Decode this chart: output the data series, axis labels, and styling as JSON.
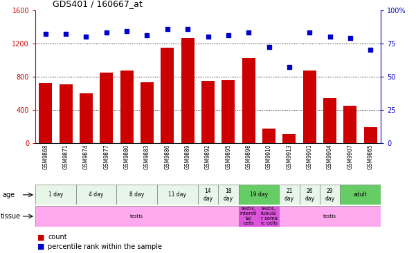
{
  "title": "GDS401 / 160667_at",
  "samples": [
    "GSM9868",
    "GSM9871",
    "GSM9874",
    "GSM9877",
    "GSM9880",
    "GSM9883",
    "GSM9886",
    "GSM9889",
    "GSM9892",
    "GSM9895",
    "GSM9898",
    "GSM9910",
    "GSM9913",
    "GSM9901",
    "GSM9904",
    "GSM9907",
    "GSM9865"
  ],
  "counts": [
    720,
    710,
    600,
    850,
    870,
    730,
    1150,
    1260,
    750,
    760,
    1020,
    170,
    110,
    870,
    540,
    450,
    190
  ],
  "percentiles": [
    82,
    82,
    80,
    83,
    84,
    81,
    86,
    86,
    80,
    81,
    83,
    72,
    57,
    83,
    80,
    79,
    70
  ],
  "ylim_left": [
    0,
    1600
  ],
  "ylim_right": [
    0,
    100
  ],
  "yticks_left": [
    0,
    400,
    800,
    1200,
    1600
  ],
  "yticks_right_vals": [
    0,
    25,
    50,
    75,
    100
  ],
  "yticks_right_labels": [
    "0",
    "25",
    "50",
    "75",
    "100%"
  ],
  "bar_color": "#cc0000",
  "dot_color": "#0000cc",
  "age_groups": [
    {
      "label": "1 day",
      "start": 0,
      "end": 2,
      "color": "#e8f5e9"
    },
    {
      "label": "4 day",
      "start": 2,
      "end": 4,
      "color": "#e8f5e9"
    },
    {
      "label": "8 day",
      "start": 4,
      "end": 6,
      "color": "#e8f5e9"
    },
    {
      "label": "11 day",
      "start": 6,
      "end": 8,
      "color": "#e8f5e9"
    },
    {
      "label": "14\nday",
      "start": 8,
      "end": 9,
      "color": "#e8f5e9"
    },
    {
      "label": "18\nday",
      "start": 9,
      "end": 10,
      "color": "#e8f5e9"
    },
    {
      "label": "19 day",
      "start": 10,
      "end": 12,
      "color": "#66cc66"
    },
    {
      "label": "21\nday",
      "start": 12,
      "end": 13,
      "color": "#e8f5e9"
    },
    {
      "label": "26\nday",
      "start": 13,
      "end": 14,
      "color": "#e8f5e9"
    },
    {
      "label": "29\nday",
      "start": 14,
      "end": 15,
      "color": "#e8f5e9"
    },
    {
      "label": "adult",
      "start": 15,
      "end": 17,
      "color": "#66cc66"
    }
  ],
  "tissue_groups": [
    {
      "label": "testis",
      "start": 0,
      "end": 10,
      "color": "#ffaaee"
    },
    {
      "label": "testis,\nintersti\ntal\ncells",
      "start": 10,
      "end": 11,
      "color": "#dd55dd"
    },
    {
      "label": "testis,\ntubula\nr soma\nic cells",
      "start": 11,
      "end": 12,
      "color": "#dd55dd"
    },
    {
      "label": "testis",
      "start": 12,
      "end": 17,
      "color": "#ffaaee"
    }
  ],
  "legend_count_label": "count",
  "legend_pct_label": "percentile rank within the sample"
}
